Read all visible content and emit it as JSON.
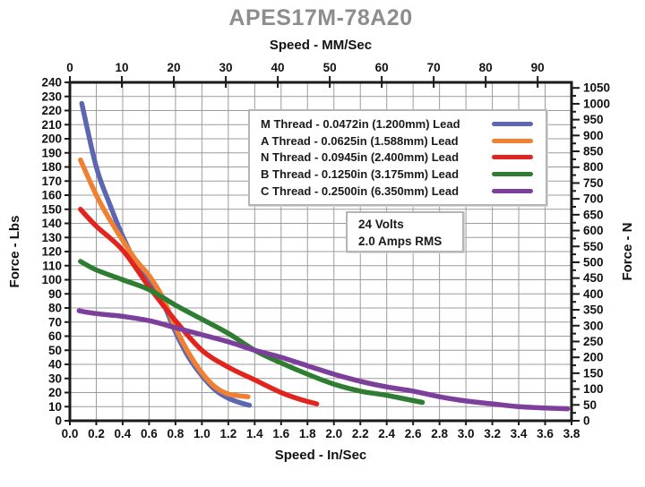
{
  "chart_data": {
    "type": "line",
    "title": "APES17M-78A20",
    "grid": true,
    "legend_position": "upper-right-inside",
    "top_axis": {
      "label": "Speed - MM/Sec",
      "ticks": [
        0,
        10,
        20,
        30,
        40,
        50,
        60,
        70,
        80,
        90
      ],
      "mm_per_inch": 25.4
    },
    "bottom_axis": {
      "label": "Speed - In/Sec",
      "min": 0.0,
      "max": 3.8,
      "ticks": [
        "0.0",
        "0.2",
        "0.4",
        "0.6",
        "0.8",
        "1.0",
        "1.2",
        "1.4",
        "1.6",
        "1.8",
        "2.0",
        "2.2",
        "2.4",
        "2.6",
        "2.8",
        "3.0",
        "3.2",
        "3.4",
        "3.6",
        "3.8"
      ]
    },
    "left_axis": {
      "label": "Force - Lbs",
      "min": 0,
      "max": 240,
      "ticks": [
        0,
        10,
        20,
        30,
        40,
        50,
        60,
        70,
        80,
        90,
        100,
        110,
        120,
        130,
        140,
        150,
        160,
        170,
        180,
        190,
        200,
        210,
        220,
        230,
        240
      ]
    },
    "right_axis": {
      "label": "Force - N",
      "min": 0,
      "max": 1050,
      "lbs_per_n": 0.224809,
      "minor_tick_step": 25,
      "ticks": [
        0,
        50,
        100,
        150,
        200,
        250,
        300,
        350,
        400,
        450,
        500,
        550,
        600,
        650,
        700,
        750,
        800,
        850,
        900,
        950,
        1000,
        1050
      ]
    },
    "annotation": {
      "lines": [
        "24 Volts",
        "2.0 Amps RMS"
      ]
    },
    "series": [
      {
        "name": "M Thread - 0.0472in (1.200mm) Lead",
        "color": "#5d67b1",
        "points": [
          [
            0.09,
            225
          ],
          [
            0.2,
            180
          ],
          [
            0.3,
            154
          ],
          [
            0.4,
            131
          ],
          [
            0.5,
            112
          ],
          [
            0.6,
            101
          ],
          [
            0.7,
            85
          ],
          [
            0.8,
            63
          ],
          [
            0.9,
            45
          ],
          [
            1.0,
            32
          ],
          [
            1.1,
            22
          ],
          [
            1.2,
            16
          ],
          [
            1.3,
            12.5
          ],
          [
            1.36,
            11
          ]
        ]
      },
      {
        "name": "A Thread - 0.0625in (1.588mm) Lead",
        "color": "#f08133",
        "points": [
          [
            0.08,
            185
          ],
          [
            0.2,
            160
          ],
          [
            0.3,
            143
          ],
          [
            0.4,
            128
          ],
          [
            0.5,
            114
          ],
          [
            0.6,
            103
          ],
          [
            0.7,
            88
          ],
          [
            0.8,
            66
          ],
          [
            0.9,
            48
          ],
          [
            1.0,
            34
          ],
          [
            1.1,
            24
          ],
          [
            1.2,
            19
          ],
          [
            1.35,
            17
          ]
        ]
      },
      {
        "name": "N Thread - 0.0945in (2.400mm) Lead",
        "color": "#e2241f",
        "points": [
          [
            0.08,
            150
          ],
          [
            0.2,
            138
          ],
          [
            0.4,
            121
          ],
          [
            0.6,
            95
          ],
          [
            0.8,
            71
          ],
          [
            1.0,
            50
          ],
          [
            1.2,
            38
          ],
          [
            1.4,
            29
          ],
          [
            1.6,
            20
          ],
          [
            1.75,
            15
          ],
          [
            1.87,
            12
          ]
        ]
      },
      {
        "name": "B Thread - 0.1250in (3.175mm) Lead",
        "color": "#2f7d32",
        "points": [
          [
            0.08,
            113
          ],
          [
            0.2,
            107
          ],
          [
            0.4,
            100
          ],
          [
            0.6,
            93
          ],
          [
            0.8,
            82
          ],
          [
            1.0,
            72
          ],
          [
            1.2,
            62
          ],
          [
            1.4,
            50
          ],
          [
            1.6,
            41
          ],
          [
            1.8,
            33
          ],
          [
            2.0,
            26
          ],
          [
            2.2,
            21
          ],
          [
            2.4,
            18
          ],
          [
            2.67,
            13
          ]
        ]
      },
      {
        "name": "C Thread - 0.2500in (6.350mm) Lead",
        "color": "#7d3f9c",
        "points": [
          [
            0.07,
            78
          ],
          [
            0.2,
            76
          ],
          [
            0.4,
            74
          ],
          [
            0.6,
            71
          ],
          [
            0.8,
            66
          ],
          [
            1.0,
            61
          ],
          [
            1.2,
            56
          ],
          [
            1.4,
            50
          ],
          [
            1.6,
            45
          ],
          [
            1.8,
            39
          ],
          [
            2.0,
            33
          ],
          [
            2.2,
            28
          ],
          [
            2.4,
            24
          ],
          [
            2.6,
            21
          ],
          [
            2.8,
            17
          ],
          [
            3.0,
            14
          ],
          [
            3.2,
            12
          ],
          [
            3.4,
            10
          ],
          [
            3.6,
            9
          ],
          [
            3.77,
            8.5
          ]
        ]
      }
    ],
    "style": {
      "grid_color": "#9c9c9c",
      "frame_color": "#1a1a1a",
      "title_color": "#8d8d8d",
      "box_border_color": "#b5b5b5"
    }
  }
}
